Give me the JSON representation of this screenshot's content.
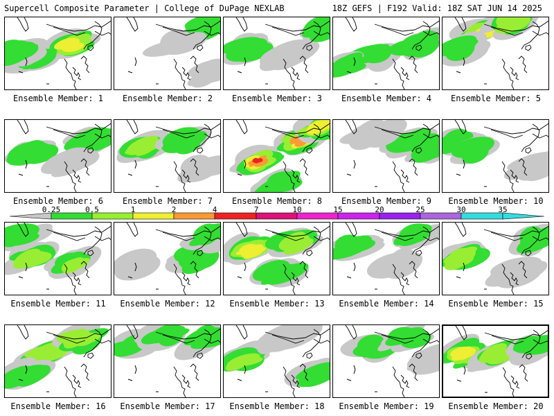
{
  "header": {
    "title": "Supercell Composite Parameter | College of DuPage NEXLAB",
    "run_info": "18Z GEFS | F192 Valid: 18Z SAT JUN 14 2025"
  },
  "panel_label_prefix": "Ensemble Member: ",
  "members": [
    {
      "label": "Ensemble Member: 1"
    },
    {
      "label": "Ensemble Member: 2"
    },
    {
      "label": "Ensemble Member: 3"
    },
    {
      "label": "Ensemble Member: 4"
    },
    {
      "label": "Ensemble Member: 5"
    },
    {
      "label": "Ensemble Member: 6"
    },
    {
      "label": "Ensemble Member: 7"
    },
    {
      "label": "Ensemble Member: 8"
    },
    {
      "label": "Ensemble Member: 9"
    },
    {
      "label": "Ensemble Member: 10"
    },
    {
      "label": "Ensemble Member: 11"
    },
    {
      "label": "Ensemble Member: 12"
    },
    {
      "label": "Ensemble Member: 13"
    },
    {
      "label": "Ensemble Member: 14"
    },
    {
      "label": "Ensemble Member: 15"
    },
    {
      "label": "Ensemble Member: 16"
    },
    {
      "label": "Ensemble Member: 17"
    },
    {
      "label": "Ensemble Member: 18"
    },
    {
      "label": "Ensemble Member: 19"
    },
    {
      "label": "Ensemble Member: 20"
    }
  ],
  "selected_member": 20,
  "colorbar": {
    "ticks": [
      "0.25",
      "0.5",
      "1",
      "2",
      "4",
      "7",
      "10",
      "15",
      "20",
      "25",
      "30",
      "35"
    ],
    "colors": [
      "#c8c8c8",
      "#33dd33",
      "#99ee33",
      "#eeee33",
      "#ff9933",
      "#ee2222",
      "#dd1177",
      "#ee22cc",
      "#cc22ee",
      "#9922ee",
      "#aa66dd",
      "#33dddd"
    ]
  }
}
